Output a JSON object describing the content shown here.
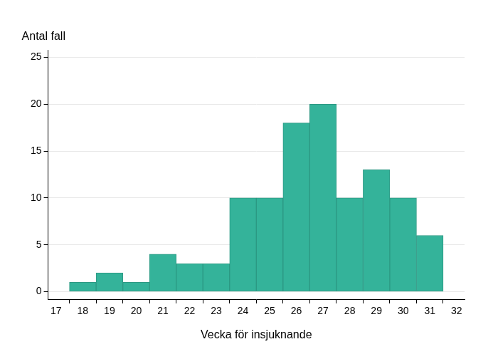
{
  "chart_data": {
    "type": "histogram",
    "x_label": "Vecka för insjuknande",
    "y_label": "Antal fall",
    "bins": [
      17.5,
      18.5,
      19.5,
      20.5,
      21.5,
      22.5,
      23.5,
      24.5,
      25.5,
      26.5,
      27.5,
      28.5,
      29.5,
      30.5,
      31.5
    ],
    "values": [
      1,
      2,
      1,
      4,
      3,
      3,
      10,
      10,
      18,
      20,
      10,
      13,
      10,
      6
    ],
    "color": "#34b39a",
    "xlim": [
      16.7,
      32.3
    ],
    "xticks": [
      17,
      18,
      19,
      20,
      21,
      22,
      23,
      24,
      25,
      26,
      27,
      28,
      29,
      30,
      31,
      32
    ],
    "ylim": [
      -0.8,
      25.8
    ],
    "yticks": [
      0,
      5,
      10,
      15,
      20,
      25
    ],
    "grid": true
  }
}
